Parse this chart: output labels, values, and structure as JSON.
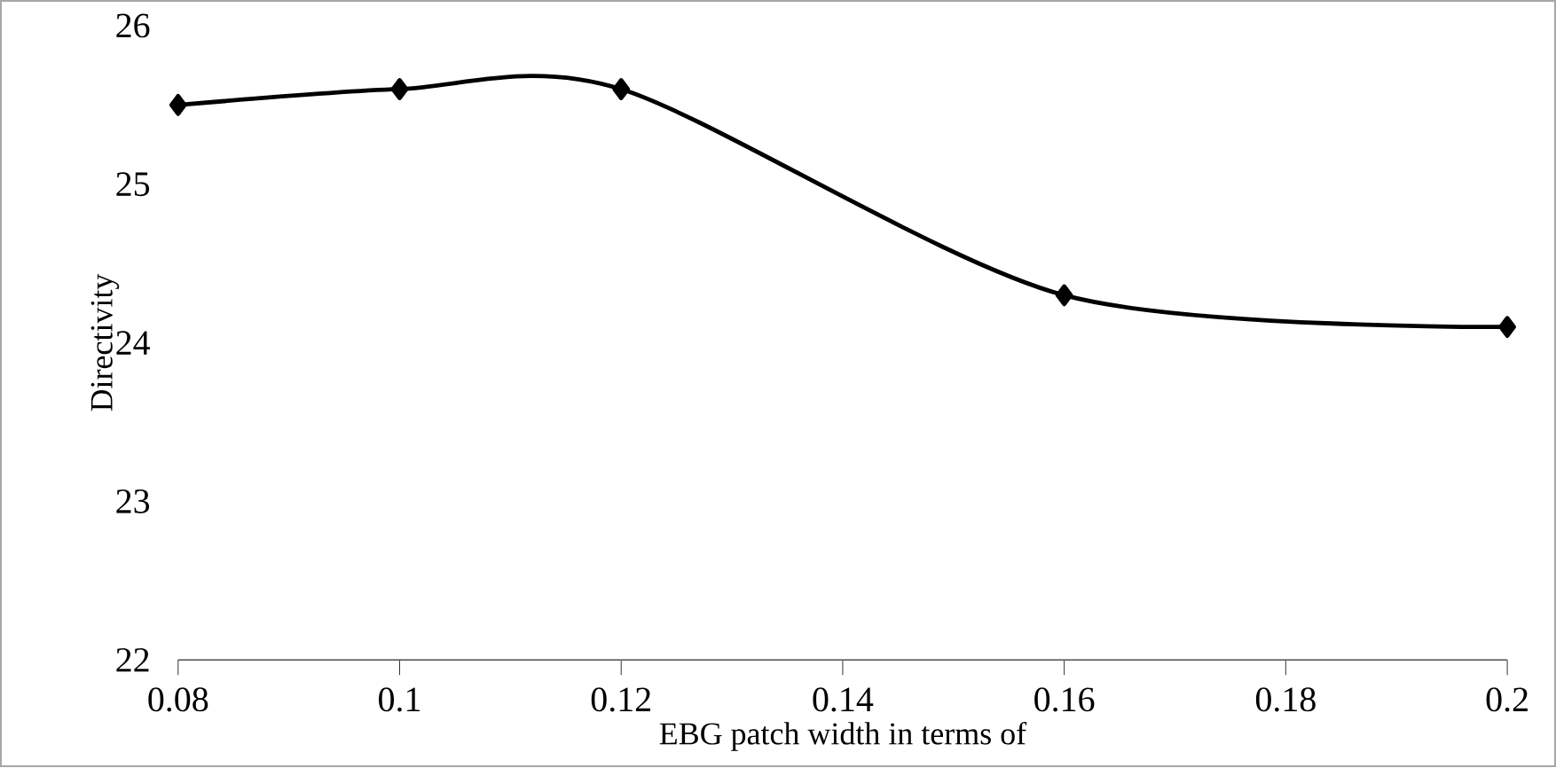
{
  "chart_data": {
    "type": "line",
    "xlabel": "EBG patch width in  terms of",
    "ylabel": "Directivity",
    "x": [
      0.08,
      0.1,
      0.12,
      0.16,
      0.2
    ],
    "series": [
      {
        "color": "#000000",
        "values": [
          25.5,
          25.6,
          25.6,
          24.3,
          24.1
        ]
      }
    ],
    "xlim": [
      0.08,
      0.2
    ],
    "xticks": [
      0.08,
      0.1,
      0.12,
      0.14,
      0.16,
      0.18,
      0.2
    ],
    "ylim": [
      22,
      26
    ],
    "yticks": [
      22,
      23,
      24,
      25,
      26
    ],
    "grid": false,
    "legend": false,
    "marker": "diamond",
    "line_style": "solid"
  }
}
